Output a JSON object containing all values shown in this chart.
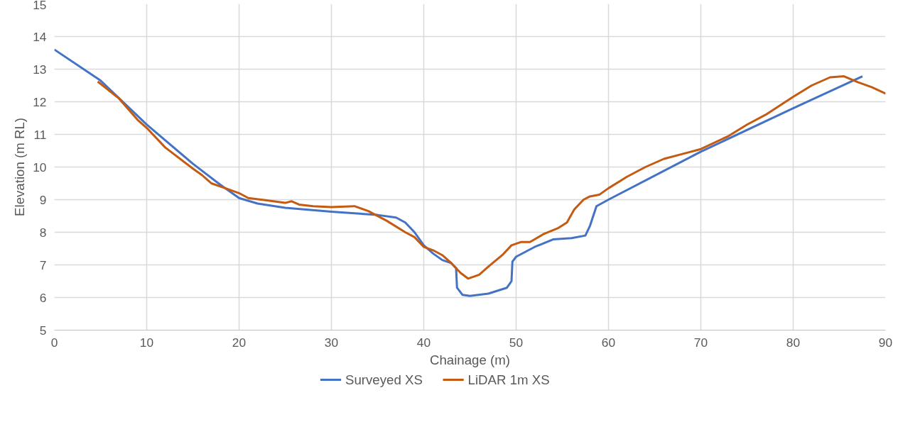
{
  "chart_data": {
    "type": "line",
    "xlabel": "Chainage (m)",
    "ylabel": "Elevation (m RL)",
    "xlim": [
      0,
      90
    ],
    "xticks": [
      0,
      10,
      20,
      30,
      40,
      50,
      60,
      70,
      80,
      90
    ],
    "ylim": [
      5,
      15
    ],
    "yticks": [
      5,
      6,
      7,
      8,
      9,
      10,
      11,
      12,
      13,
      14,
      15
    ],
    "grid": true,
    "legend": "bottom",
    "marker": "none",
    "line_style": "solid",
    "series": [
      {
        "name": "Surveyed XS",
        "color": "#4472c4",
        "x": [
          0,
          5,
          10,
          15,
          18,
          20,
          22,
          25,
          30,
          35,
          37,
          38,
          39,
          40,
          41,
          42,
          43,
          43.5,
          43.6,
          44.2,
          45,
          47,
          49,
          49.5,
          49.6,
          50,
          52,
          54,
          56,
          57.5,
          58,
          58.7,
          60,
          70,
          80,
          87.5
        ],
        "values": [
          13.6,
          12.65,
          11.3,
          10.1,
          9.45,
          9.05,
          8.88,
          8.75,
          8.63,
          8.53,
          8.45,
          8.3,
          8.0,
          7.6,
          7.35,
          7.15,
          7.05,
          6.9,
          6.3,
          6.08,
          6.05,
          6.12,
          6.3,
          6.5,
          7.1,
          7.25,
          7.55,
          7.78,
          7.82,
          7.9,
          8.2,
          8.8,
          9.0,
          10.47,
          11.8,
          12.78
        ]
      },
      {
        "name": "LiDAR 1m XS",
        "color": "#c55a11",
        "x": [
          4.7,
          7,
          9,
          10,
          12,
          15,
          16,
          17,
          19,
          20,
          21,
          23,
          25,
          25.7,
          26.5,
          28,
          30,
          32.5,
          34,
          36,
          38,
          39,
          40,
          41,
          42,
          43,
          44,
          44.8,
          46,
          47,
          48.5,
          49.5,
          50.5,
          51.5,
          53,
          54.5,
          55.5,
          56.3,
          57.3,
          58,
          59,
          60,
          62,
          64,
          66,
          68,
          70,
          73,
          75,
          77,
          80,
          82,
          84,
          85.5,
          87,
          88.5,
          90
        ],
        "values": [
          12.62,
          12.1,
          11.45,
          11.2,
          10.6,
          9.95,
          9.75,
          9.5,
          9.3,
          9.2,
          9.05,
          8.98,
          8.9,
          8.95,
          8.85,
          8.8,
          8.77,
          8.8,
          8.65,
          8.35,
          8.0,
          7.85,
          7.55,
          7.45,
          7.3,
          7.05,
          6.75,
          6.58,
          6.7,
          6.95,
          7.3,
          7.6,
          7.7,
          7.7,
          7.95,
          8.12,
          8.3,
          8.7,
          9.0,
          9.1,
          9.15,
          9.35,
          9.7,
          10.0,
          10.25,
          10.4,
          10.55,
          10.95,
          11.3,
          11.6,
          12.15,
          12.5,
          12.75,
          12.78,
          12.6,
          12.45,
          12.25
        ]
      }
    ]
  }
}
